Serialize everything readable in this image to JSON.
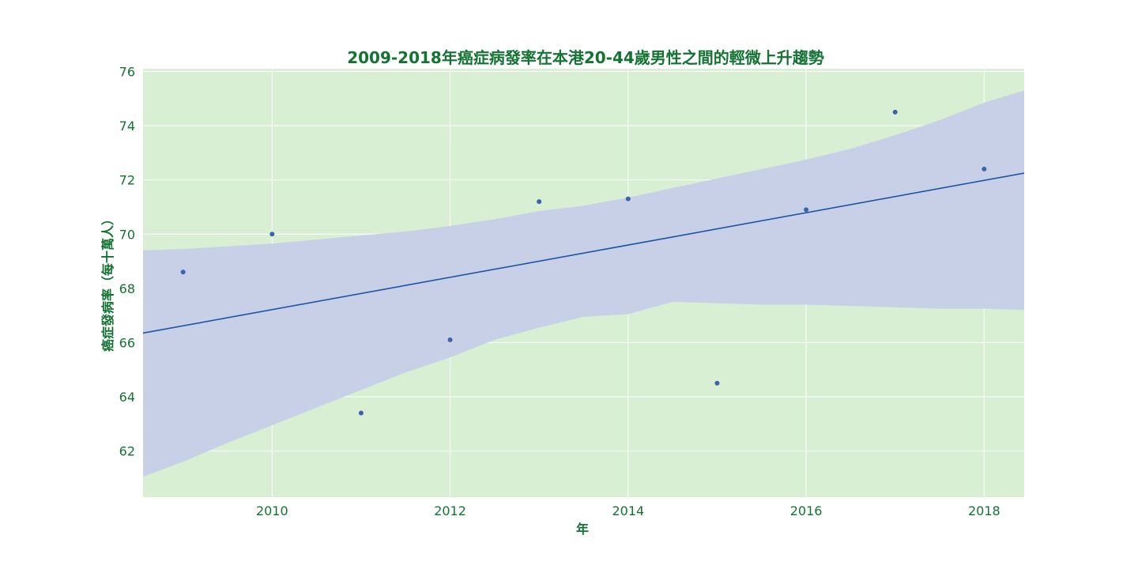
{
  "colors": {
    "text": "#137333",
    "plot_background": "#d9efd4",
    "grid": "#ffffff",
    "confidence_band": "#c7d0e6",
    "regression_line": "#1f55a3",
    "points": "#3a63b0"
  },
  "chart_data": {
    "type": "scatter",
    "title": "2009-2018年癌症病發率在本港20-44歲男性之間的輕微上升趨勢",
    "xlabel": "年",
    "ylabel": "癌症發病率（每十萬人）",
    "xlim": [
      2008.55,
      2018.45
    ],
    "ylim": [
      60.3,
      76.1
    ],
    "x_ticks": [
      2010,
      2012,
      2014,
      2016,
      2018
    ],
    "y_ticks": [
      62,
      64,
      66,
      68,
      70,
      72,
      74,
      76
    ],
    "grid": true,
    "legend": "none",
    "series": [
      {
        "x": [
          2009,
          2010,
          2011,
          2012,
          2013,
          2014,
          2015,
          2016,
          2017,
          2018
        ],
        "y": [
          68.6,
          70.0,
          63.4,
          66.1,
          71.2,
          71.3,
          64.5,
          70.9,
          74.5,
          72.4
        ]
      }
    ],
    "regression_line": {
      "x": [
        2008.55,
        2018.45
      ],
      "y": [
        66.35,
        72.25
      ]
    },
    "confidence_band": {
      "x": [
        2008.55,
        2009.0,
        2009.5,
        2010.0,
        2010.5,
        2011.0,
        2011.5,
        2012.0,
        2012.5,
        2013.0,
        2013.5,
        2014.0,
        2014.5,
        2015.0,
        2015.5,
        2016.0,
        2016.5,
        2017.0,
        2017.5,
        2018.0,
        2018.45
      ],
      "upper": [
        69.4,
        69.45,
        69.55,
        69.65,
        69.8,
        69.95,
        70.1,
        70.3,
        70.55,
        70.85,
        71.05,
        71.35,
        71.7,
        72.05,
        72.4,
        72.75,
        73.15,
        73.65,
        74.2,
        74.85,
        75.3
      ],
      "lower": [
        61.05,
        61.6,
        62.3,
        62.95,
        63.6,
        64.25,
        64.9,
        65.45,
        66.1,
        66.55,
        66.95,
        67.05,
        67.5,
        67.45,
        67.4,
        67.4,
        67.35,
        67.3,
        67.25,
        67.25,
        67.2
      ]
    }
  }
}
